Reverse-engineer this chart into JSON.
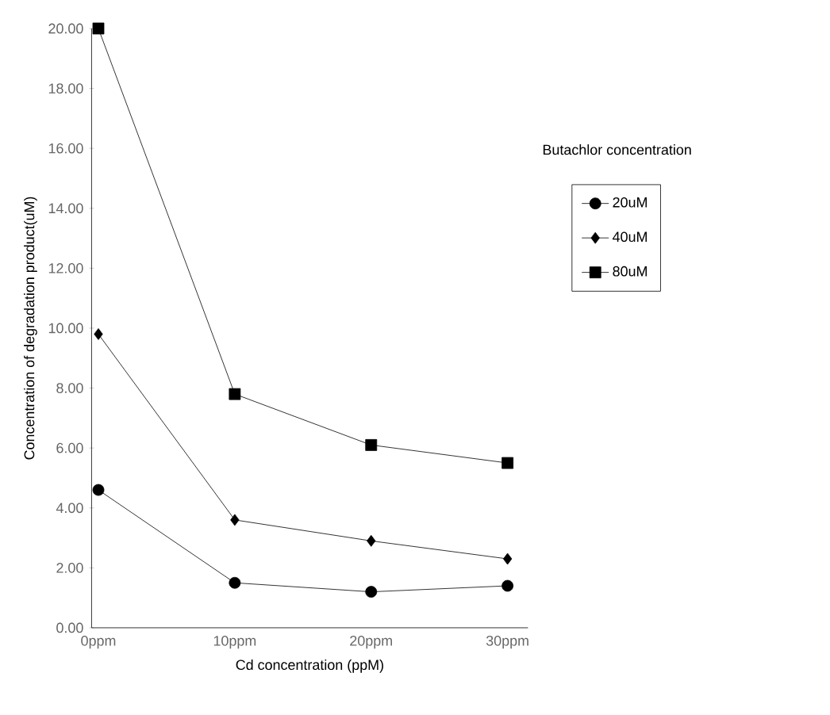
{
  "chart_data": {
    "type": "line",
    "xlabel": "Cd concentration (ppM)",
    "ylabel": "Concentration of degradation product(uM)",
    "legend_title": "Butachlor concentration",
    "categories": [
      "0ppm",
      "10ppm",
      "20ppm",
      "30ppm"
    ],
    "series": [
      {
        "name": "20uM",
        "color": "#000000",
        "marker": "circle",
        "values": [
          4.6,
          1.5,
          1.2,
          1.4
        ]
      },
      {
        "name": "40uM",
        "color": "#000000",
        "marker": "diamond",
        "values": [
          9.8,
          3.6,
          2.9,
          2.3
        ]
      },
      {
        "name": "80uM",
        "color": "#000000",
        "marker": "square",
        "values": [
          20.0,
          7.8,
          6.1,
          5.5
        ]
      }
    ],
    "ylim": [
      0,
      20
    ],
    "yticks": [
      {
        "value": 0,
        "label": "0.00"
      },
      {
        "value": 2,
        "label": "2.00"
      },
      {
        "value": 4,
        "label": "4.00"
      },
      {
        "value": 6,
        "label": "6.00"
      },
      {
        "value": 8,
        "label": "8.00"
      },
      {
        "value": 10,
        "label": "10.00"
      },
      {
        "value": 12,
        "label": "12.00"
      },
      {
        "value": 14,
        "label": "14.00"
      },
      {
        "value": 16,
        "label": "16.00"
      },
      {
        "value": 18,
        "label": "18.00"
      },
      {
        "value": 20,
        "label": "20.00"
      }
    ],
    "grid": false,
    "legend": "right",
    "line_style": "solid"
  }
}
